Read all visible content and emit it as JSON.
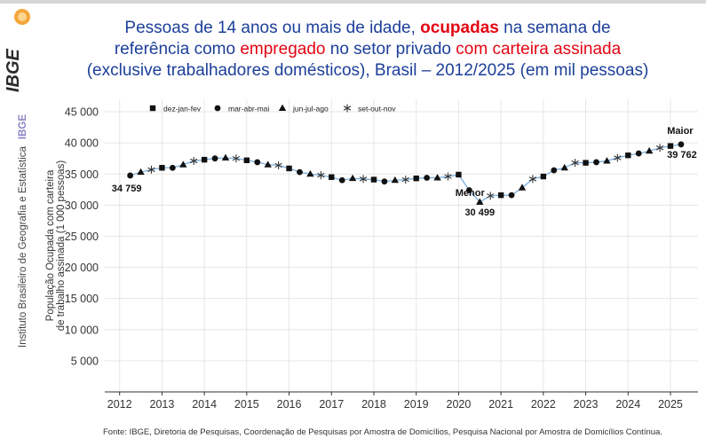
{
  "header": {
    "title_line1_a": "Pessoas de 14 anos ou mais de idade, ",
    "title_line1_b": "ocupadas",
    "title_line1_c": " na semana de",
    "title_line2_a": "referência como ",
    "title_line2_b": "empregado",
    "title_line2_c": " no setor privado ",
    "title_line2_d": "com carteira assinada",
    "title_line3": "(exclusive trabalhadores domésticos), Brasil – 2012/2025 (em mil pessoas)"
  },
  "sidebar": {
    "logo_text": "IBGE",
    "institute": "Instituto Brasileiro de Geografia e Estatística",
    "institute_short": "IBGE"
  },
  "source": "Fonte: IBGE, Diretoria de Pesquisas, Coordenação de Pesquisas por Amostra de Domicílios, Pesquisa Nacional por Amostra de Domicílios Contínua.",
  "colors": {
    "line": "#6fa8dc",
    "marker": "#111111",
    "title": "#1c3f98",
    "accent": "#e30613"
  },
  "chart_data": {
    "type": "line",
    "ylabel_line1": "População Ocupada com carteira",
    "ylabel_line2": "de trabalho assinada (1 000 pessoas)",
    "ylim": [
      0,
      47000
    ],
    "y_ticks": [
      5000,
      10000,
      15000,
      20000,
      25000,
      30000,
      35000,
      40000,
      45000
    ],
    "y_tick_labels": [
      "5 000",
      "10 000",
      "15 000",
      "20 000",
      "25 000",
      "30 000",
      "35 000",
      "40 000",
      "45 000"
    ],
    "x_ticks": [
      2012,
      2013,
      2014,
      2015,
      2016,
      2017,
      2018,
      2019,
      2020,
      2021,
      2022,
      2023,
      2024,
      2025
    ],
    "grid": true,
    "legend_position": "top-left",
    "legend": [
      {
        "label": "dez-jan-fev",
        "marker": "square"
      },
      {
        "label": "mar-abr-mai",
        "marker": "circle"
      },
      {
        "label": "jun-jul-ago",
        "marker": "triangle"
      },
      {
        "label": "set-out-nov",
        "marker": "asterisk"
      }
    ],
    "points": [
      {
        "x": 2012.25,
        "y": 34759,
        "m": "circle"
      },
      {
        "x": 2012.5,
        "y": 35300,
        "m": "triangle"
      },
      {
        "x": 2012.75,
        "y": 35700,
        "m": "asterisk"
      },
      {
        "x": 2013.0,
        "y": 36000,
        "m": "square"
      },
      {
        "x": 2013.25,
        "y": 36000,
        "m": "circle"
      },
      {
        "x": 2013.5,
        "y": 36500,
        "m": "triangle"
      },
      {
        "x": 2013.75,
        "y": 37100,
        "m": "asterisk"
      },
      {
        "x": 2014.0,
        "y": 37300,
        "m": "square"
      },
      {
        "x": 2014.25,
        "y": 37500,
        "m": "circle"
      },
      {
        "x": 2014.5,
        "y": 37600,
        "m": "triangle"
      },
      {
        "x": 2014.75,
        "y": 37500,
        "m": "asterisk"
      },
      {
        "x": 2015.0,
        "y": 37200,
        "m": "square"
      },
      {
        "x": 2015.25,
        "y": 36900,
        "m": "circle"
      },
      {
        "x": 2015.5,
        "y": 36500,
        "m": "triangle"
      },
      {
        "x": 2015.75,
        "y": 36400,
        "m": "asterisk"
      },
      {
        "x": 2016.0,
        "y": 35900,
        "m": "square"
      },
      {
        "x": 2016.25,
        "y": 35300,
        "m": "circle"
      },
      {
        "x": 2016.5,
        "y": 35000,
        "m": "triangle"
      },
      {
        "x": 2016.75,
        "y": 34800,
        "m": "asterisk"
      },
      {
        "x": 2017.0,
        "y": 34500,
        "m": "square"
      },
      {
        "x": 2017.25,
        "y": 34000,
        "m": "circle"
      },
      {
        "x": 2017.5,
        "y": 34300,
        "m": "triangle"
      },
      {
        "x": 2017.75,
        "y": 34200,
        "m": "asterisk"
      },
      {
        "x": 2018.0,
        "y": 34100,
        "m": "square"
      },
      {
        "x": 2018.25,
        "y": 33800,
        "m": "circle"
      },
      {
        "x": 2018.5,
        "y": 34000,
        "m": "triangle"
      },
      {
        "x": 2018.75,
        "y": 34100,
        "m": "asterisk"
      },
      {
        "x": 2019.0,
        "y": 34300,
        "m": "square"
      },
      {
        "x": 2019.25,
        "y": 34400,
        "m": "circle"
      },
      {
        "x": 2019.5,
        "y": 34400,
        "m": "triangle"
      },
      {
        "x": 2019.75,
        "y": 34600,
        "m": "asterisk"
      },
      {
        "x": 2020.0,
        "y": 34900,
        "m": "square"
      },
      {
        "x": 2020.25,
        "y": 32400,
        "m": "circle"
      },
      {
        "x": 2020.5,
        "y": 30499,
        "m": "triangle"
      },
      {
        "x": 2020.75,
        "y": 31500,
        "m": "asterisk"
      },
      {
        "x": 2021.0,
        "y": 31600,
        "m": "square"
      },
      {
        "x": 2021.25,
        "y": 31600,
        "m": "circle"
      },
      {
        "x": 2021.5,
        "y": 32800,
        "m": "triangle"
      },
      {
        "x": 2021.75,
        "y": 34200,
        "m": "asterisk"
      },
      {
        "x": 2022.0,
        "y": 34600,
        "m": "square"
      },
      {
        "x": 2022.25,
        "y": 35600,
        "m": "circle"
      },
      {
        "x": 2022.5,
        "y": 36000,
        "m": "triangle"
      },
      {
        "x": 2022.75,
        "y": 36800,
        "m": "asterisk"
      },
      {
        "x": 2023.0,
        "y": 36800,
        "m": "square"
      },
      {
        "x": 2023.25,
        "y": 36900,
        "m": "circle"
      },
      {
        "x": 2023.5,
        "y": 37100,
        "m": "triangle"
      },
      {
        "x": 2023.75,
        "y": 37600,
        "m": "asterisk"
      },
      {
        "x": 2024.0,
        "y": 38000,
        "m": "square"
      },
      {
        "x": 2024.25,
        "y": 38300,
        "m": "circle"
      },
      {
        "x": 2024.5,
        "y": 38700,
        "m": "triangle"
      },
      {
        "x": 2024.75,
        "y": 39200,
        "m": "asterisk"
      },
      {
        "x": 2025.0,
        "y": 39500,
        "m": "square"
      },
      {
        "x": 2025.25,
        "y": 39762,
        "m": "circle"
      }
    ],
    "annotations": [
      {
        "label": "Maior",
        "value_label": "39 762",
        "x": 2025.25,
        "y": 39762
      },
      {
        "label": "Menor",
        "value_label": "30 499",
        "x": 2020.5,
        "y": 30499
      },
      {
        "label": "",
        "value_label": "34 759",
        "x": 2012.25,
        "y": 34759
      }
    ]
  }
}
